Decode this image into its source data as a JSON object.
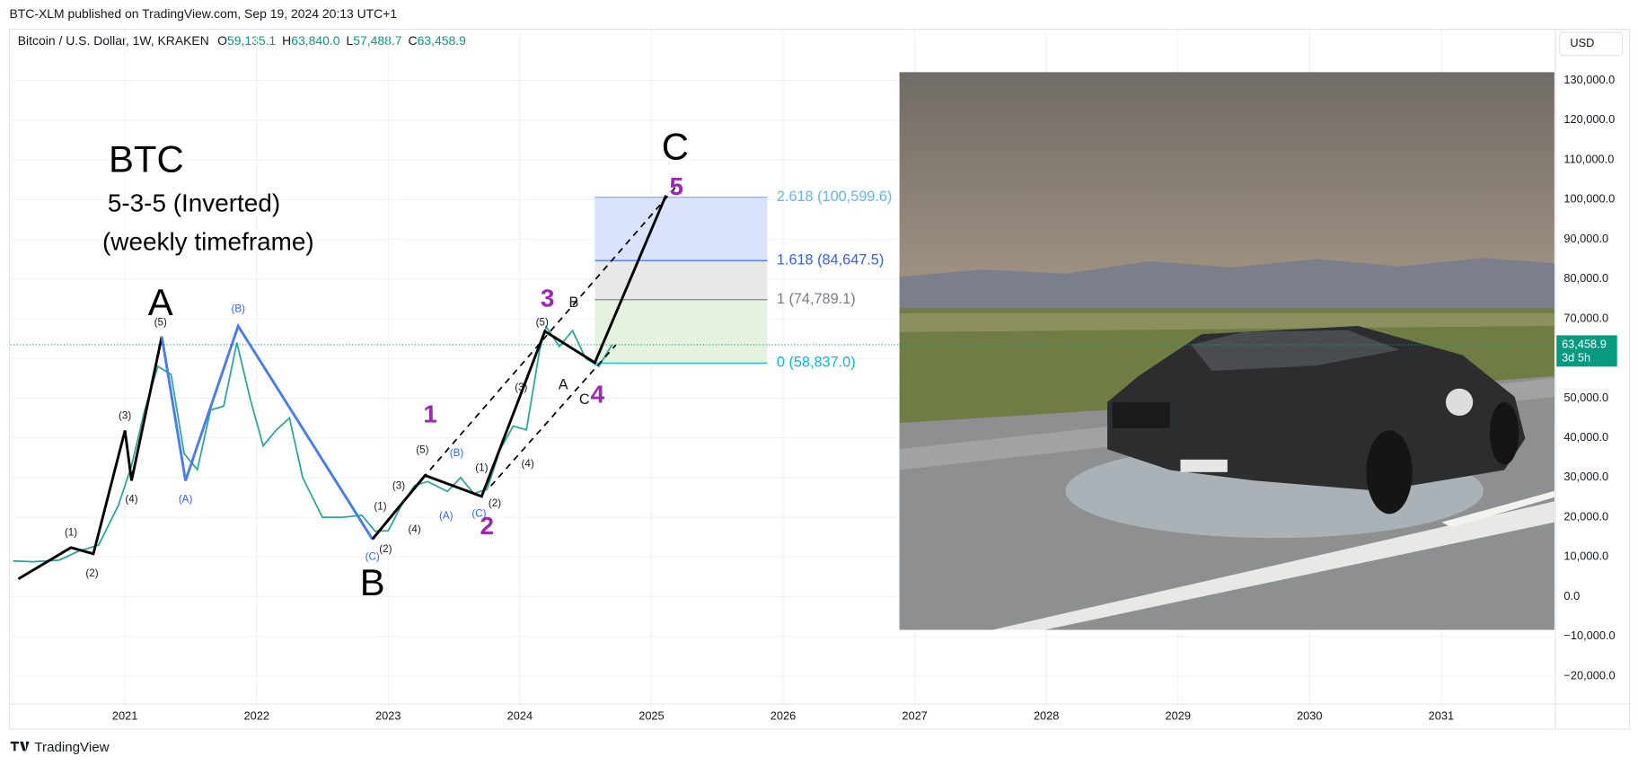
{
  "header": {
    "published": "BTC-XLM published on TradingView.com, Sep 19, 2024 20:13 UTC+1",
    "symbol": "Bitcoin / U.S. Dollar, 1W, KRAKEN",
    "ohlc": [
      {
        "key": "O",
        "value": "59,135.1"
      },
      {
        "key": "H",
        "value": "63,840.0"
      },
      {
        "key": "L",
        "value": "57,488.7"
      },
      {
        "key": "C",
        "value": "63,458.9"
      }
    ],
    "currency": "USD"
  },
  "footer": {
    "brand": "TradingView"
  },
  "chart_data": {
    "type": "line",
    "color": "#26a69a",
    "grid": true,
    "title": "BTC",
    "subtitle": "5-3-5 (Inverted)",
    "subtitle2": "(weekly timeframe)",
    "x": [
      2020.15,
      2020.3,
      2020.5,
      2020.65,
      2020.8,
      2020.95,
      2021.05,
      2021.15,
      2021.25,
      2021.35,
      2021.45,
      2021.55,
      2021.65,
      2021.75,
      2021.85,
      2021.95,
      2022.05,
      2022.15,
      2022.25,
      2022.35,
      2022.5,
      2022.65,
      2022.8,
      2022.9,
      2023.0,
      2023.1,
      2023.2,
      2023.3,
      2023.45,
      2023.55,
      2023.65,
      2023.75,
      2023.85,
      2023.95,
      2024.05,
      2024.15,
      2024.2,
      2024.3,
      2024.4,
      2024.5,
      2024.6,
      2024.7
    ],
    "values": [
      9000,
      8800,
      9200,
      11500,
      13000,
      23000,
      33000,
      47000,
      58000,
      56000,
      36000,
      32000,
      47000,
      48000,
      64000,
      50000,
      38000,
      42000,
      45000,
      30000,
      20000,
      20000,
      20500,
      16500,
      16600,
      23000,
      28000,
      29000,
      26500,
      30000,
      26000,
      27000,
      37000,
      43000,
      42000,
      62000,
      68000,
      63000,
      67000,
      60000,
      58000,
      63458.9
    ],
    "xlim": [
      2020.13,
      2031.86
    ],
    "xticks": [
      2021,
      2022,
      2023,
      2024,
      2025,
      2026,
      2027,
      2028,
      2029,
      2030,
      2031
    ],
    "ylim": [
      -26500,
      135800
    ],
    "yticks": [
      {
        "value": 130000,
        "label": "130,000.0"
      },
      {
        "value": 120000,
        "label": "120,000.0"
      },
      {
        "value": 110000,
        "label": "110,000.0"
      },
      {
        "value": 100000,
        "label": "100,000.0"
      },
      {
        "value": 90000,
        "label": "90,000.0"
      },
      {
        "value": 80000,
        "label": "80,000.0"
      },
      {
        "value": 70000,
        "label": "70,000.0"
      },
      {
        "value": 60000,
        "label": "60,000.0"
      },
      {
        "value": 50000,
        "label": "50,000.0"
      },
      {
        "value": 40000,
        "label": "40,000.0"
      },
      {
        "value": 30000,
        "label": "30,000.0"
      },
      {
        "value": 20000,
        "label": "20,000.0"
      },
      {
        "value": 10000,
        "label": "10,000.0"
      },
      {
        "value": 0,
        "label": "0.0"
      },
      {
        "value": -10000,
        "label": "−10,000.0"
      },
      {
        "value": -20000,
        "label": "−20,000.0"
      }
    ],
    "last_price": 63458.9,
    "last_price_label": "63,458.9",
    "countdown": "3d 5h",
    "fib_x": [
      2024.57,
      2025.88
    ],
    "fib_levels": [
      {
        "label": "0 (58,837.0)",
        "value": 58837.0,
        "color": "#00bcd4",
        "fill": "#e6f2e0"
      },
      {
        "label": "1 (74,789.1)",
        "value": 74789.1,
        "color": "#787b86",
        "fill": "#e8e8e8"
      },
      {
        "label": "1.618 (84,647.5)",
        "value": 84647.5,
        "color": "#2962ff",
        "fill": "#dbe3fc"
      },
      {
        "label": "2.618 (100,599.6)",
        "value": 100599.6,
        "color": "#64b5f6",
        "fill": "#ddeefc"
      }
    ],
    "wave_lines": [
      {
        "color": "#000000",
        "style": "solid",
        "x": [
          2020.19,
          2020.59,
          2020.76,
          2021.0,
          2021.05,
          2021.28
        ],
        "y": [
          4470,
          12370,
          10790,
          41840,
          29210,
          65530
        ]
      },
      {
        "color": "#4a7bea",
        "style": "solid",
        "x": [
          2021.28,
          2021.46,
          2021.86,
          2022.88
        ],
        "y": [
          65530,
          29210,
          68160,
          14470
        ]
      },
      {
        "color": "#000000",
        "style": "solid",
        "x": [
          2022.88,
          2023.28,
          2023.71,
          2024.19,
          2024.57,
          2025.11
        ],
        "y": [
          14470,
          30530,
          25260,
          66840,
          58950,
          101050
        ]
      },
      {
        "color": "#000000",
        "style": "dashed",
        "x": [
          2023.26,
          2025.19
        ],
        "y": [
          29740,
          103420
        ]
      },
      {
        "color": "#000000",
        "style": "dashed",
        "x": [
          2023.78,
          2024.73
        ],
        "y": [
          27890,
          63420
        ]
      }
    ],
    "annotations": [
      {
        "text": "(1)",
        "x": 2020.59,
        "y": 16050,
        "color": "#131722",
        "style": "small"
      },
      {
        "text": "(2)",
        "x": 2020.75,
        "y": 5790,
        "color": "#131722",
        "style": "small"
      },
      {
        "text": "(3)",
        "x": 2021.0,
        "y": 45530,
        "color": "#131722",
        "style": "small"
      },
      {
        "text": "(4)",
        "x": 2021.05,
        "y": 24470,
        "color": "#131722",
        "style": "small"
      },
      {
        "text": "(5)",
        "x": 2021.27,
        "y": 68950,
        "color": "#131722",
        "style": "small"
      },
      {
        "text": "A",
        "x": 2021.27,
        "y": 73420,
        "color": "#000000",
        "style": "big"
      },
      {
        "text": "(A)",
        "x": 2021.46,
        "y": 24470,
        "color": "#2962ff",
        "style": "small"
      },
      {
        "text": "(B)",
        "x": 2021.86,
        "y": 72370,
        "color": "#2962ff",
        "style": "small"
      },
      {
        "text": "(C)",
        "x": 2022.88,
        "y": 10000,
        "color": "#2962ff",
        "style": "small"
      },
      {
        "text": "B",
        "x": 2022.88,
        "y": 2890,
        "color": "#000000",
        "style": "big"
      },
      {
        "text": "(1)",
        "x": 2022.94,
        "y": 22630,
        "color": "#131722",
        "style": "small"
      },
      {
        "text": "(2)",
        "x": 2022.98,
        "y": 11840,
        "color": "#131722",
        "style": "small"
      },
      {
        "text": "(3)",
        "x": 2023.08,
        "y": 27890,
        "color": "#131722",
        "style": "small"
      },
      {
        "text": "(4)",
        "x": 2023.2,
        "y": 16840,
        "color": "#131722",
        "style": "small"
      },
      {
        "text": "(5)",
        "x": 2023.26,
        "y": 36840,
        "color": "#131722",
        "style": "small"
      },
      {
        "text": "1",
        "x": 2023.32,
        "y": 45530,
        "color": "#9c27b0",
        "style": "medium"
      },
      {
        "text": "(A)",
        "x": 2023.44,
        "y": 20260,
        "color": "#2962ff",
        "style": "small"
      },
      {
        "text": "(B)",
        "x": 2023.52,
        "y": 36050,
        "color": "#2962ff",
        "style": "small"
      },
      {
        "text": "(C)",
        "x": 2023.69,
        "y": 20790,
        "color": "#2962ff",
        "style": "small"
      },
      {
        "text": "2",
        "x": 2023.75,
        "y": 17370,
        "color": "#9c27b0",
        "style": "medium"
      },
      {
        "text": "(1)",
        "x": 2023.71,
        "y": 32370,
        "color": "#131722",
        "style": "small"
      },
      {
        "text": "(2)",
        "x": 2023.81,
        "y": 23420,
        "color": "#131722",
        "style": "small"
      },
      {
        "text": "(3)",
        "x": 2024.01,
        "y": 52630,
        "color": "#131722",
        "style": "small"
      },
      {
        "text": "(4)",
        "x": 2024.06,
        "y": 33420,
        "color": "#131722",
        "style": "small"
      },
      {
        "text": "(5)",
        "x": 2024.17,
        "y": 68950,
        "color": "#131722",
        "style": "small"
      },
      {
        "text": "3",
        "x": 2024.21,
        "y": 74740,
        "color": "#9c27b0",
        "style": "medium"
      },
      {
        "text": "B",
        "x": 2024.41,
        "y": 73950,
        "color": "#131722",
        "style": "label"
      },
      {
        "text": "A",
        "x": 2024.33,
        "y": 53160,
        "color": "#131722",
        "style": "label"
      },
      {
        "text": "C",
        "x": 2024.49,
        "y": 49470,
        "color": "#131722",
        "style": "label"
      },
      {
        "text": "4",
        "x": 2024.59,
        "y": 50530,
        "color": "#9c27b0",
        "style": "medium"
      },
      {
        "text": "5",
        "x": 2025.19,
        "y": 102890,
        "color": "#9c27b0",
        "style": "medium"
      },
      {
        "text": "C",
        "x": 2025.18,
        "y": 112630,
        "color": "#000000",
        "style": "big"
      }
    ]
  }
}
